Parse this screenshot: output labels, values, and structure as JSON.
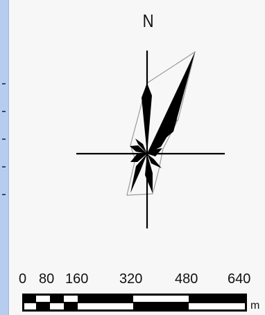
{
  "north": {
    "label": "N"
  },
  "scale": {
    "ticks": [
      "0",
      "80",
      "160",
      "320",
      "480",
      "640"
    ],
    "unit": "m",
    "max_value": 640
  },
  "colors": {
    "petal_fill": "#000000",
    "envelope_stroke": "#999999",
    "axis": "#000000",
    "side_strip": "#b7cdf0"
  }
}
